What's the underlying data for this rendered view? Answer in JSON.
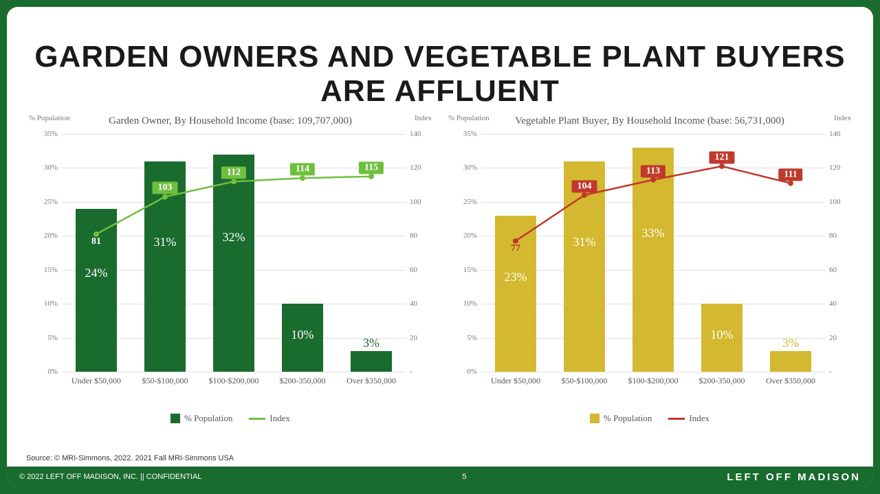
{
  "title": "GARDEN OWNERS AND VEGETABLE PLANT BUYERS ARE AFFLUENT",
  "source": "Source: © MRI-Simmons, 2022. 2021 Fall MRI-Simmons USA",
  "footer_left": "© 2022 LEFT OFF MADISON, INC.  ||  CONFIDENTIAL",
  "footer_page": "5",
  "footer_right": "LEFT OFF MADISON",
  "left_chart": {
    "title": "Garden Owner, By Household Income (base: 109,707,000)",
    "categories": [
      "Under $50,000",
      "$50-$100,000",
      "$100-$200,000",
      "$200-350,000",
      "Over $350,000"
    ],
    "bar_values": [
      24,
      31,
      32,
      10,
      3
    ],
    "bar_labels": [
      "24%",
      "31%",
      "32%",
      "10%",
      "3%"
    ],
    "index_values": [
      81,
      103,
      112,
      114,
      115
    ],
    "bar_color": "#1a6b2e",
    "line_color": "#6fbf3f",
    "label_bg": "#6fbf3f",
    "first_label_color": "#ffffff",
    "y_left_title": "% Population",
    "y_right_title": "Index",
    "y_left_max": 35,
    "y_left_step": 5,
    "y_right_max": 140,
    "y_right_step": 20,
    "legend_bar": "% Population",
    "legend_line": "Index"
  },
  "right_chart": {
    "title": "Vegetable Plant Buyer, By Household Income (base: 56,731,000)",
    "categories": [
      "Under $50,000",
      "$50-$100,000",
      "$100-$200,000",
      "$200-350,000",
      "Over $350,000"
    ],
    "bar_values": [
      23,
      31,
      33,
      10,
      3
    ],
    "bar_labels": [
      "23%",
      "31%",
      "33%",
      "10%",
      "3%"
    ],
    "index_values": [
      77,
      104,
      113,
      121,
      111
    ],
    "bar_color": "#d4b82f",
    "line_color": "#c0392b",
    "label_bg": "#c0392b",
    "first_label_color": "#c0392b",
    "y_left_title": "% Population",
    "y_right_title": "Index",
    "y_left_max": 35,
    "y_left_step": 5,
    "y_right_max": 140,
    "y_right_step": 20,
    "legend_bar": "% Population",
    "legend_line": "Index"
  }
}
